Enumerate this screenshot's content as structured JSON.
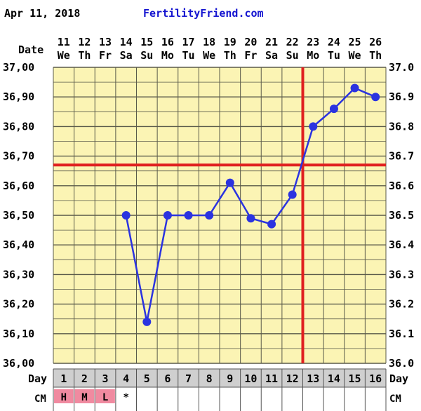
{
  "header": {
    "date": "Apr 11, 2018",
    "site": "FertilityFriend.com"
  },
  "colors": {
    "plot_bg": "#fbf4b4",
    "grid": "#5a5a4a",
    "series": "#2b33e0",
    "coverline": "#e02020",
    "ovulation_line": "#e02020",
    "site_text": "#1414d0",
    "day_row_bg": "#cfcfcf",
    "cm_bg": "#f08aa0"
  },
  "row_labels": {
    "date": "Date",
    "day": "Day",
    "cm": "CM"
  },
  "chart_data": {
    "type": "line",
    "title": "",
    "xlabel": "",
    "ylabel": "",
    "ylim": [
      36.0,
      37.0
    ],
    "yticks": [
      "36,00",
      "36,10",
      "36,20",
      "36,30",
      "36,40",
      "36,50",
      "36,60",
      "36,70",
      "36,80",
      "36,90",
      "37,00"
    ],
    "yticks_right": [
      "36.0",
      "36.1",
      "36.2",
      "36.3",
      "36.4",
      "36.5",
      "36.6",
      "36.7",
      "36.8",
      "36.9",
      "37.0"
    ],
    "days": [
      "1",
      "2",
      "3",
      "4",
      "5",
      "6",
      "7",
      "8",
      "9",
      "10",
      "11",
      "12",
      "13",
      "14",
      "15",
      "16"
    ],
    "dates": [
      "11",
      "12",
      "13",
      "14",
      "15",
      "16",
      "17",
      "18",
      "19",
      "20",
      "21",
      "22",
      "23",
      "24",
      "25",
      "26"
    ],
    "weekdays": [
      "We",
      "Th",
      "Fr",
      "Sa",
      "Su",
      "Mo",
      "Tu",
      "We",
      "Th",
      "Fr",
      "Sa",
      "Su",
      "Mo",
      "Tu",
      "We",
      "Th"
    ],
    "series": [
      {
        "values": [
          null,
          null,
          null,
          36.5,
          36.14,
          36.5,
          36.5,
          36.5,
          36.61,
          36.49,
          36.47,
          36.57,
          36.8,
          36.86,
          36.93,
          36.9
        ]
      }
    ],
    "coverline": 36.67,
    "ovulation_day": 12,
    "cervical_mucus": [
      "H",
      "M",
      "L",
      "*",
      "",
      "",
      "",
      "",
      "",
      "",
      "",
      "",
      "",
      "",
      "",
      ""
    ],
    "grid": true
  }
}
